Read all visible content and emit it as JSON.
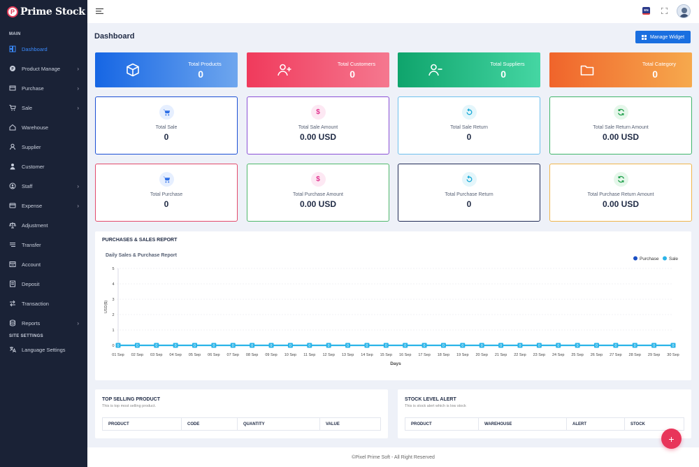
{
  "brand": {
    "name": "Prime Stock",
    "logo_letter": "P"
  },
  "sidebar": {
    "section_main": "MAIN",
    "section_site": "SITE SETTINGS",
    "items": [
      {
        "label": "Dashboard",
        "icon": "dashboard-icon",
        "active": true,
        "has_children": false
      },
      {
        "label": "Product Manage",
        "icon": "product-icon",
        "has_children": true
      },
      {
        "label": "Purchase",
        "icon": "purchase-icon",
        "has_children": true
      },
      {
        "label": "Sale",
        "icon": "cart-icon",
        "has_children": true
      },
      {
        "label": "Warehouse",
        "icon": "home-icon",
        "has_children": false
      },
      {
        "label": "Supplier",
        "icon": "user-icon",
        "has_children": false
      },
      {
        "label": "Customer",
        "icon": "customer-icon",
        "has_children": false
      },
      {
        "label": "Staff",
        "icon": "staff-icon",
        "has_children": true
      },
      {
        "label": "Expense",
        "icon": "card-icon",
        "has_children": true
      },
      {
        "label": "Adjustment",
        "icon": "scale-icon",
        "has_children": false
      },
      {
        "label": "Transfer",
        "icon": "transfer-icon",
        "has_children": false
      },
      {
        "label": "Account",
        "icon": "account-icon",
        "has_children": false
      },
      {
        "label": "Deposit",
        "icon": "deposit-icon",
        "has_children": false
      },
      {
        "label": "Transaction",
        "icon": "transaction-icon",
        "has_children": false
      },
      {
        "label": "Reports",
        "icon": "reports-icon",
        "has_children": true
      }
    ],
    "settings_items": [
      {
        "label": "Language Settings",
        "icon": "language-icon"
      }
    ]
  },
  "topbar": {
    "lang": "EN"
  },
  "header": {
    "title": "Dashboard",
    "manage_widget": "Manage Widget"
  },
  "stats": [
    {
      "label": "Total Products",
      "value": "0",
      "icon": "box-icon",
      "from": "#1666e4",
      "to": "#6ea6ee"
    },
    {
      "label": "Total Customers",
      "value": "0",
      "icon": "user-plus-icon",
      "from": "#f03a5c",
      "to": "#f5788f"
    },
    {
      "label": "Total Suppliers",
      "value": "0",
      "icon": "user-minus-icon",
      "from": "#0fa46c",
      "to": "#45d6a3"
    },
    {
      "label": "Total Category",
      "value": "0",
      "icon": "folder-icon",
      "from": "#f0642b",
      "to": "#f6a94d"
    }
  ],
  "cards_row1": [
    {
      "label": "Total Sale",
      "value": "0",
      "icon": "cart-icon",
      "border": "#1a4fd4",
      "icon_bg": "#e6efff",
      "icon_color": "#2f6fe6"
    },
    {
      "label": "Total Sale Amount",
      "value": "0.00 USD",
      "icon": "dollar-icon",
      "border": "#8a4fd6",
      "icon_bg": "#fde8f3",
      "icon_color": "#e0338f"
    },
    {
      "label": "Total Sale Return",
      "value": "0",
      "icon": "return-icon",
      "border": "#6ec0ee",
      "icon_bg": "#e4f6fb",
      "icon_color": "#1aa9d6"
    },
    {
      "label": "Total Sale Return Amount",
      "value": "0.00 USD",
      "icon": "refresh-icon",
      "border": "#3fb56a",
      "icon_bg": "#e5f7ea",
      "icon_color": "#24a14f"
    }
  ],
  "cards_row2": [
    {
      "label": "Total Purchase",
      "value": "0",
      "icon": "cart-icon",
      "border": "#e24a6c",
      "icon_bg": "#e6efff",
      "icon_color": "#2f6fe6"
    },
    {
      "label": "Total Purchase Amount",
      "value": "0.00 USD",
      "icon": "dollar-icon",
      "border": "#4fb86b",
      "icon_bg": "#fde8f3",
      "icon_color": "#e0338f"
    },
    {
      "label": "Total Purchase Return",
      "value": "0",
      "icon": "return-icon",
      "border": "#1f2a55",
      "icon_bg": "#e4f6fb",
      "icon_color": "#1aa9d6"
    },
    {
      "label": "Total Purchase Return Amount",
      "value": "0.00 USD",
      "icon": "refresh-icon",
      "border": "#f0b54a",
      "icon_bg": "#e5f7ea",
      "icon_color": "#24a14f"
    }
  ],
  "report": {
    "title": "PURCHASES & SALES REPORT",
    "chart_title": "Daily Sales & Purchase Report"
  },
  "chart_data": {
    "type": "line",
    "title": "Daily Sales & Purchase Report",
    "xlabel": "Days",
    "ylabel": "USD($)",
    "ylim": [
      0,
      5
    ],
    "yticks": [
      "0",
      "1",
      "2",
      "3",
      "4",
      "5"
    ],
    "categories": [
      "01 Sep",
      "02 Sep",
      "03 Sep",
      "04 Sep",
      "05 Sep",
      "06 Sep",
      "07 Sep",
      "08 Sep",
      "09 Sep",
      "10 Sep",
      "11 Sep",
      "12 Sep",
      "13 Sep",
      "14 Sep",
      "15 Sep",
      "16 Sep",
      "17 Sep",
      "18 Sep",
      "19 Sep",
      "20 Sep",
      "21 Sep",
      "22 Sep",
      "23 Sep",
      "24 Sep",
      "25 Sep",
      "26 Sep",
      "27 Sep",
      "28 Sep",
      "29 Sep",
      "30 Sep"
    ],
    "series": [
      {
        "name": "Purchase",
        "color": "#1a4fc4",
        "values": [
          0,
          0,
          0,
          0,
          0,
          0,
          0,
          0,
          0,
          0,
          0,
          0,
          0,
          0,
          0,
          0,
          0,
          0,
          0,
          0,
          0,
          0,
          0,
          0,
          0,
          0,
          0,
          0,
          0,
          0
        ]
      },
      {
        "name": "Sale",
        "color": "#2bb4e8",
        "values": [
          0,
          0,
          0,
          0,
          0,
          0,
          0,
          0,
          0,
          0,
          0,
          0,
          0,
          0,
          0,
          0,
          0,
          0,
          0,
          0,
          0,
          0,
          0,
          0,
          0,
          0,
          0,
          0,
          0,
          0
        ]
      }
    ],
    "legend": "top-right",
    "grid": true,
    "point_label": "0"
  },
  "top_selling": {
    "title": "TOP SELLING PRODUCT",
    "subtitle": "This is top most selling product.",
    "columns": [
      "PRODUCT",
      "CODE",
      "QUANTITY",
      "VALUE"
    ]
  },
  "stock_alert": {
    "title": "STOCK LEVEL ALERT",
    "subtitle": "This is stock alert which is low stock",
    "columns": [
      "PRODUCT",
      "WAREHOUSE",
      "ALERT",
      "STOCK"
    ]
  },
  "footer": {
    "text": "©Pixel Prime Soft - All Right Reserved"
  },
  "fab": {
    "label": "+"
  }
}
